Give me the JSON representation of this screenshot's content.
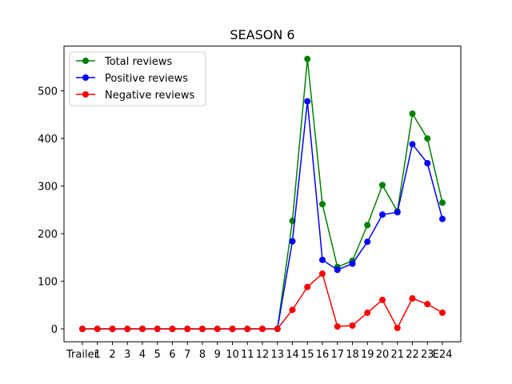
{
  "chart_data": {
    "type": "line",
    "title": "SEASON 6",
    "xlabel": "",
    "ylabel": "",
    "categories": [
      "Trailer",
      "1",
      "2",
      "3",
      "4",
      "5",
      "6",
      "7",
      "8",
      "9",
      "10",
      "11",
      "12",
      "13",
      "14",
      "15",
      "16",
      "17",
      "18",
      "19",
      "20",
      "21",
      "22",
      "23",
      "E24"
    ],
    "ylim": [
      -27,
      594
    ],
    "yticks": [
      0,
      100,
      200,
      300,
      400,
      500
    ],
    "grid": false,
    "legend_position": "upper-left",
    "series": [
      {
        "name": "Total reviews",
        "color": "#008000",
        "values": [
          0,
          0,
          0,
          0,
          0,
          0,
          0,
          0,
          0,
          0,
          0,
          0,
          0,
          0,
          227,
          567,
          262,
          130,
          143,
          218,
          302,
          247,
          452,
          400,
          265
        ]
      },
      {
        "name": "Positive reviews",
        "color": "#0000ff",
        "values": [
          0,
          0,
          0,
          0,
          0,
          0,
          0,
          0,
          0,
          0,
          0,
          0,
          0,
          0,
          184,
          478,
          145,
          124,
          137,
          183,
          240,
          245,
          388,
          348,
          231
        ]
      },
      {
        "name": "Negative reviews",
        "color": "#ff0000",
        "values": [
          0,
          0,
          0,
          0,
          0,
          0,
          0,
          0,
          0,
          0,
          0,
          0,
          0,
          0,
          40,
          88,
          116,
          5,
          7,
          34,
          61,
          2,
          64,
          52,
          34
        ]
      }
    ]
  }
}
